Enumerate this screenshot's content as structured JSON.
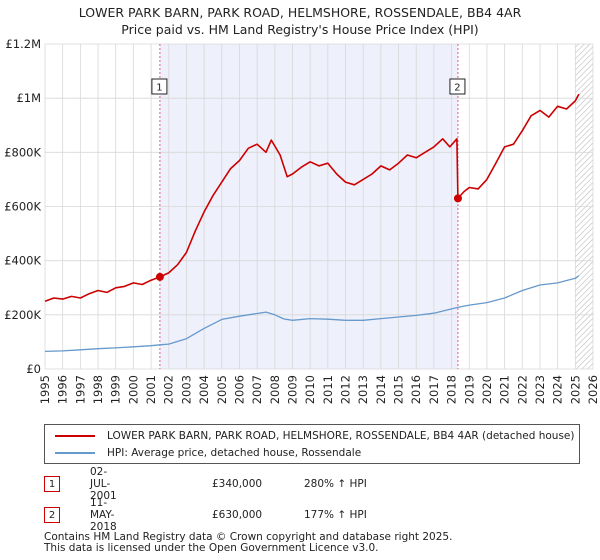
{
  "chart_data": {
    "type": "line",
    "title": "LOWER PARK BARN, PARK ROAD, HELMSHORE, ROSSENDALE, BB4 4AR",
    "subtitle": "Price paid vs. HM Land Registry's House Price Index (HPI)",
    "xlabel": "",
    "ylabel": "",
    "xlim": [
      1995,
      2026
    ],
    "ylim": [
      0,
      1200000
    ],
    "x_ticks": [
      "1995",
      "1996",
      "1997",
      "1998",
      "1999",
      "2000",
      "2001",
      "2002",
      "2003",
      "2004",
      "2005",
      "2006",
      "2007",
      "2008",
      "2009",
      "2010",
      "2011",
      "2012",
      "2013",
      "2014",
      "2015",
      "2016",
      "2017",
      "2018",
      "2019",
      "2020",
      "2021",
      "2022",
      "2023",
      "2024",
      "2025",
      "2026"
    ],
    "y_ticks": [
      {
        "value": 0,
        "label": "£0"
      },
      {
        "value": 200000,
        "label": "£200K"
      },
      {
        "value": 400000,
        "label": "£400K"
      },
      {
        "value": 600000,
        "label": "£600K"
      },
      {
        "value": 800000,
        "label": "£800K"
      },
      {
        "value": 1000000,
        "label": "£1M"
      },
      {
        "value": 1200000,
        "label": "£1.2M"
      }
    ],
    "grid": true,
    "shaded_period": [
      2001.5,
      2018.36
    ],
    "hatched_from": 2025.0,
    "colors": {
      "property": "#cc0000",
      "hpi": "#6699cc",
      "shade": "#eef0fb",
      "marker_line": "#e06080"
    },
    "series": [
      {
        "name": "LOWER PARK BARN, PARK ROAD, HELMSHORE, ROSSENDALE, BB4 4AR (detached house)",
        "color": "#cc0000",
        "x": [
          1995.0,
          1995.5,
          1996.0,
          1996.5,
          1997.0,
          1997.5,
          1998.0,
          1998.5,
          1999.0,
          1999.5,
          2000.0,
          2000.5,
          2001.0,
          2001.5,
          2002.0,
          2002.5,
          2003.0,
          2003.5,
          2004.0,
          2004.5,
          2005.0,
          2005.5,
          2006.0,
          2006.5,
          2007.0,
          2007.5,
          2007.8,
          2008.3,
          2008.7,
          2009.0,
          2009.5,
          2010.0,
          2010.5,
          2011.0,
          2011.5,
          2012.0,
          2012.5,
          2013.0,
          2013.5,
          2014.0,
          2014.5,
          2015.0,
          2015.5,
          2016.0,
          2016.5,
          2017.0,
          2017.5,
          2017.9,
          2018.3,
          2018.36,
          2018.7,
          2019.0,
          2019.5,
          2020.0,
          2020.5,
          2021.0,
          2021.5,
          2022.0,
          2022.5,
          2023.0,
          2023.5,
          2024.0,
          2024.5,
          2025.0,
          2025.2
        ],
        "values": [
          250000,
          262000,
          258000,
          268000,
          262000,
          278000,
          290000,
          283000,
          300000,
          305000,
          318000,
          312000,
          328000,
          340000,
          355000,
          385000,
          430000,
          510000,
          580000,
          640000,
          690000,
          740000,
          770000,
          815000,
          830000,
          800000,
          845000,
          790000,
          710000,
          720000,
          745000,
          765000,
          750000,
          760000,
          720000,
          690000,
          680000,
          700000,
          720000,
          750000,
          735000,
          760000,
          790000,
          780000,
          800000,
          820000,
          850000,
          820000,
          850000,
          630000,
          655000,
          670000,
          665000,
          700000,
          760000,
          820000,
          830000,
          880000,
          935000,
          955000,
          930000,
          970000,
          960000,
          990000,
          1015000
        ]
      },
      {
        "name": "HPI: Average price, detached house, Rossendale",
        "color": "#6699cc",
        "x": [
          1995.0,
          1996.0,
          1997.0,
          1998.0,
          1999.0,
          2000.0,
          2001.0,
          2001.5,
          2002.0,
          2003.0,
          2004.0,
          2005.0,
          2006.0,
          2007.0,
          2007.5,
          2008.0,
          2008.5,
          2009.0,
          2010.0,
          2011.0,
          2012.0,
          2013.0,
          2014.0,
          2015.0,
          2016.0,
          2017.0,
          2018.0,
          2018.36,
          2019.0,
          2020.0,
          2021.0,
          2022.0,
          2023.0,
          2024.0,
          2025.0,
          2025.2
        ],
        "values": [
          65000,
          67000,
          71000,
          75000,
          78000,
          82000,
          86000,
          89500,
          92000,
          112000,
          150000,
          183000,
          195000,
          205000,
          210000,
          200000,
          185000,
          180000,
          186000,
          184000,
          180000,
          180000,
          186000,
          192000,
          198000,
          206000,
          222000,
          227500,
          236000,
          245000,
          262000,
          290000,
          310000,
          318000,
          335000,
          345000
        ]
      }
    ],
    "transactions": [
      {
        "num": "1",
        "date": "02-JUL-2001",
        "price": "£340,000",
        "hpi": "280% ↑ HPI",
        "x": 2001.5,
        "y": 340000
      },
      {
        "num": "2",
        "date": "11-MAY-2018",
        "price": "£630,000",
        "hpi": "177% ↑ HPI",
        "x": 2018.36,
        "y": 630000
      }
    ]
  },
  "footer": {
    "line1": "Contains HM Land Registry data © Crown copyright and database right 2025.",
    "line2": "This data is licensed under the Open Government Licence v3.0."
  }
}
